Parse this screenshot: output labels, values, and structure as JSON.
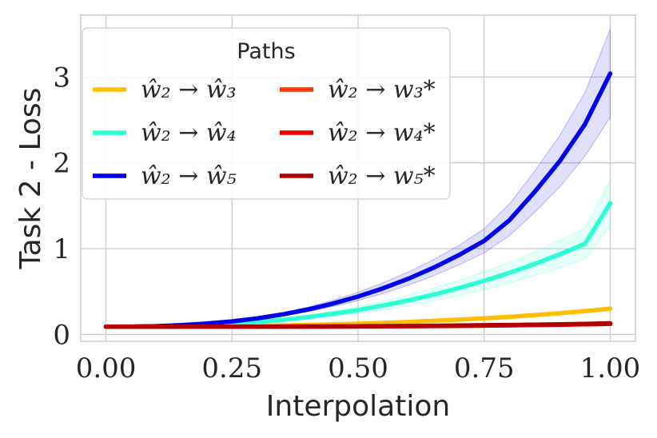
{
  "chart_data": {
    "type": "line",
    "title": "",
    "xlabel": "Interpolation",
    "ylabel": "Task 2 - Loss",
    "xlim": [
      -0.05,
      1.05
    ],
    "ylim": [
      -0.08,
      3.72
    ],
    "xticks": [
      0.0,
      0.25,
      0.5,
      0.75,
      1.0
    ],
    "xtick_labels": [
      "0.00",
      "0.25",
      "0.50",
      "0.75",
      "1.00"
    ],
    "yticks": [
      0,
      1,
      2,
      3
    ],
    "ytick_labels": [
      "0",
      "1",
      "2",
      "3"
    ],
    "grid": true,
    "legend": {
      "title": "Paths",
      "placement": "upper-left",
      "columns": 2
    },
    "x": [
      0.0,
      0.05,
      0.1,
      0.15,
      0.2,
      0.25,
      0.3,
      0.35,
      0.4,
      0.45,
      0.5,
      0.55,
      0.6,
      0.65,
      0.7,
      0.75,
      0.8,
      0.85,
      0.9,
      0.95,
      1.0
    ],
    "series": [
      {
        "name": "ŵ₂ → ŵ₃",
        "color": "#ffbf00",
        "values": [
          0.09,
          0.09,
          0.091,
          0.092,
          0.094,
          0.097,
          0.1,
          0.105,
          0.11,
          0.117,
          0.125,
          0.134,
          0.145,
          0.158,
          0.172,
          0.188,
          0.205,
          0.225,
          0.247,
          0.272,
          0.3
        ]
      },
      {
        "name": "ŵ₂ → ŵ₄",
        "color": "#2affd5",
        "values": [
          0.09,
          0.09,
          0.094,
          0.1,
          0.11,
          0.124,
          0.145,
          0.17,
          0.202,
          0.24,
          0.285,
          0.337,
          0.397,
          0.464,
          0.54,
          0.624,
          0.717,
          0.82,
          0.933,
          1.055,
          1.53
        ],
        "band_low": [
          0.09,
          0.09,
          0.093,
          0.098,
          0.106,
          0.118,
          0.135,
          0.155,
          0.18,
          0.21,
          0.245,
          0.287,
          0.335,
          0.39,
          0.452,
          0.521,
          0.598,
          0.684,
          0.778,
          0.88,
          1.27
        ],
        "band_high": [
          0.09,
          0.09,
          0.095,
          0.102,
          0.114,
          0.132,
          0.155,
          0.185,
          0.224,
          0.27,
          0.325,
          0.387,
          0.459,
          0.54,
          0.63,
          0.73,
          0.84,
          0.962,
          1.095,
          1.24,
          1.8
        ]
      },
      {
        "name": "ŵ₂ → ŵ₅",
        "color": "#0000ee",
        "values": [
          0.09,
          0.091,
          0.096,
          0.108,
          0.127,
          0.152,
          0.187,
          0.233,
          0.29,
          0.36,
          0.442,
          0.538,
          0.65,
          0.778,
          0.925,
          1.09,
          1.33,
          1.66,
          2.02,
          2.45,
          3.04
        ],
        "band_low": [
          0.09,
          0.091,
          0.095,
          0.105,
          0.122,
          0.145,
          0.175,
          0.215,
          0.265,
          0.325,
          0.395,
          0.478,
          0.575,
          0.685,
          0.81,
          0.95,
          1.15,
          1.42,
          1.72,
          2.08,
          2.53
        ],
        "band_high": [
          0.09,
          0.092,
          0.098,
          0.111,
          0.133,
          0.162,
          0.2,
          0.252,
          0.318,
          0.398,
          0.492,
          0.602,
          0.728,
          0.872,
          1.038,
          1.23,
          1.52,
          1.9,
          2.32,
          2.82,
          3.56
        ]
      },
      {
        "name": "ŵ₂ → w₃*",
        "color": "#ff3300",
        "values": [
          0.09,
          0.09,
          0.09,
          0.09,
          0.09,
          0.09,
          0.09,
          0.091,
          0.092,
          0.093,
          0.094,
          0.095,
          0.097,
          0.099,
          0.101,
          0.104,
          0.107,
          0.111,
          0.115,
          0.12,
          0.125
        ]
      },
      {
        "name": "ŵ₂ → w₄*",
        "color": "#ee0000",
        "values": [
          0.09,
          0.09,
          0.09,
          0.09,
          0.09,
          0.09,
          0.09,
          0.09,
          0.091,
          0.092,
          0.093,
          0.094,
          0.096,
          0.098,
          0.1,
          0.103,
          0.106,
          0.11,
          0.114,
          0.118,
          0.122
        ]
      },
      {
        "name": "ŵ₂ → w₅*",
        "color": "#b00000",
        "values": [
          0.09,
          0.09,
          0.09,
          0.09,
          0.09,
          0.09,
          0.09,
          0.091,
          0.092,
          0.093,
          0.095,
          0.097,
          0.099,
          0.101,
          0.104,
          0.107,
          0.11,
          0.114,
          0.118,
          0.123,
          0.13
        ]
      }
    ]
  }
}
